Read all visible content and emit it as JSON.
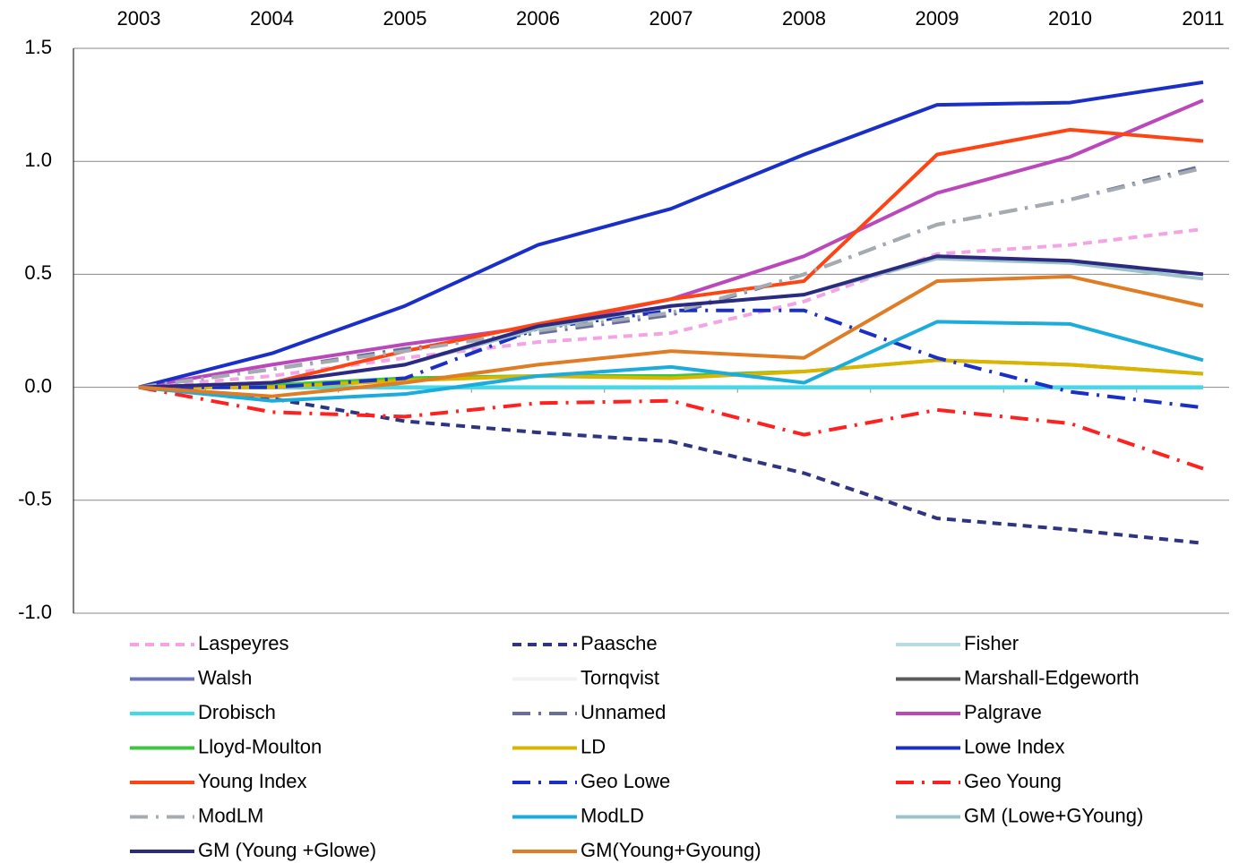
{
  "chart_data": {
    "type": "line",
    "categories": [
      "2003",
      "2004",
      "2005",
      "2006",
      "2007",
      "2008",
      "2009",
      "2010",
      "2011"
    ],
    "ylim": [
      -1.0,
      1.5
    ],
    "yticks": [
      1.5,
      {
        "value": 1.0,
        "label": "1.0"
      },
      0.5,
      {
        "value": 0.0,
        "label": "0.0"
      },
      -0.5,
      {
        "value": -1.0,
        "label": "-1.0"
      }
    ],
    "grid": true,
    "series": [
      {
        "name": "Laspeyres",
        "color": "#f4a4e4",
        "style": "dashed",
        "values": [
          0,
          0.05,
          0.13,
          0.2,
          0.24,
          0.38,
          0.59,
          0.63,
          0.7
        ]
      },
      {
        "name": "Paasche",
        "color": "#2e3480",
        "style": "dashed",
        "values": [
          0,
          -0.05,
          -0.15,
          -0.2,
          -0.24,
          -0.38,
          -0.58,
          -0.63,
          -0.69
        ]
      },
      {
        "name": "Fisher",
        "color": "#b8dce6",
        "style": "solid",
        "values": [
          0,
          0,
          0,
          0,
          0,
          0,
          0,
          0,
          0
        ]
      },
      {
        "name": "Walsh",
        "color": "#6c74b8",
        "style": "solid",
        "values": [
          0,
          0,
          0,
          0,
          0,
          0,
          0,
          0,
          0
        ]
      },
      {
        "name": "Tornqvist",
        "color": "#f2f2f2",
        "style": "solid",
        "values": [
          0,
          0,
          0,
          0,
          0,
          0,
          0,
          0,
          0
        ]
      },
      {
        "name": "Marshall-Edgeworth",
        "color": "#5a5a5a",
        "style": "solid",
        "values": [
          0,
          0,
          0,
          0,
          0,
          0,
          0,
          0,
          0
        ]
      },
      {
        "name": "Drobisch",
        "color": "#3cdcec",
        "style": "solid",
        "values": [
          0,
          0,
          0,
          0,
          0,
          0,
          0,
          0,
          0
        ]
      },
      {
        "name": "Unnamed",
        "color": "#6a6e9c",
        "style": "dashdot",
        "values": [
          0,
          0.08,
          0.17,
          0.24,
          0.32,
          0.5,
          0.72,
          0.83,
          0.98
        ]
      },
      {
        "name": "Palgrave",
        "color": "#bb48bb",
        "style": "solid",
        "values": [
          0,
          0.1,
          0.19,
          0.27,
          0.39,
          0.58,
          0.86,
          1.02,
          1.27
        ]
      },
      {
        "name": "Lloyd-Moulton",
        "color": "#3cc83c",
        "style": "solid",
        "values": [
          0,
          0.01,
          0.04,
          0.05,
          0.05,
          0.07,
          0.12,
          0.1,
          0.06
        ]
      },
      {
        "name": "LD",
        "color": "#dcb400",
        "style": "solid",
        "values": [
          0,
          0,
          0.03,
          0.05,
          0.04,
          0.07,
          0.12,
          0.1,
          0.06
        ]
      },
      {
        "name": "Lowe Index",
        "color": "#1a2ec8",
        "style": "solid",
        "values": [
          0,
          0.15,
          0.36,
          0.63,
          0.79,
          1.03,
          1.25,
          1.26,
          1.35
        ]
      },
      {
        "name": "Young Index",
        "color": "#ff4414",
        "style": "solid",
        "values": [
          0,
          0.02,
          0.16,
          0.28,
          0.39,
          0.47,
          1.03,
          1.14,
          1.09
        ]
      },
      {
        "name": "Geo Lowe",
        "color": "#1a2ec8",
        "style": "dashdot",
        "values": [
          0,
          0,
          0.04,
          0.26,
          0.34,
          0.34,
          0.13,
          -0.02,
          -0.09
        ]
      },
      {
        "name": "Geo Young",
        "color": "#ff2020",
        "style": "dashdot",
        "values": [
          0,
          -0.11,
          -0.13,
          -0.07,
          -0.06,
          -0.21,
          -0.1,
          -0.16,
          -0.36
        ]
      },
      {
        "name": "ModLM",
        "color": "#a4acb2",
        "style": "dashdot",
        "values": [
          0,
          0.08,
          0.16,
          0.25,
          0.33,
          0.5,
          0.72,
          0.83,
          0.97
        ]
      },
      {
        "name": "ModLD",
        "color": "#1cacdc",
        "style": "solid",
        "values": [
          0,
          -0.06,
          -0.03,
          0.05,
          0.09,
          0.02,
          0.29,
          0.28,
          0.12
        ]
      },
      {
        "name": "GM (Lowe+GYoung)",
        "color": "#9cc4c8",
        "style": "solid",
        "values": [
          0,
          0.02,
          0.1,
          0.26,
          0.36,
          0.41,
          0.57,
          0.55,
          0.48
        ]
      },
      {
        "name": "GM (Young +Glowe)",
        "color": "#2c2a80",
        "style": "solid",
        "values": [
          0,
          0.02,
          0.1,
          0.27,
          0.36,
          0.41,
          0.58,
          0.56,
          0.5
        ]
      },
      {
        "name": "GM(Young+Gyoung)",
        "color": "#e07c24",
        "style": "solid",
        "values": [
          0,
          -0.04,
          0.02,
          0.1,
          0.16,
          0.13,
          0.47,
          0.49,
          0.36
        ]
      }
    ]
  }
}
